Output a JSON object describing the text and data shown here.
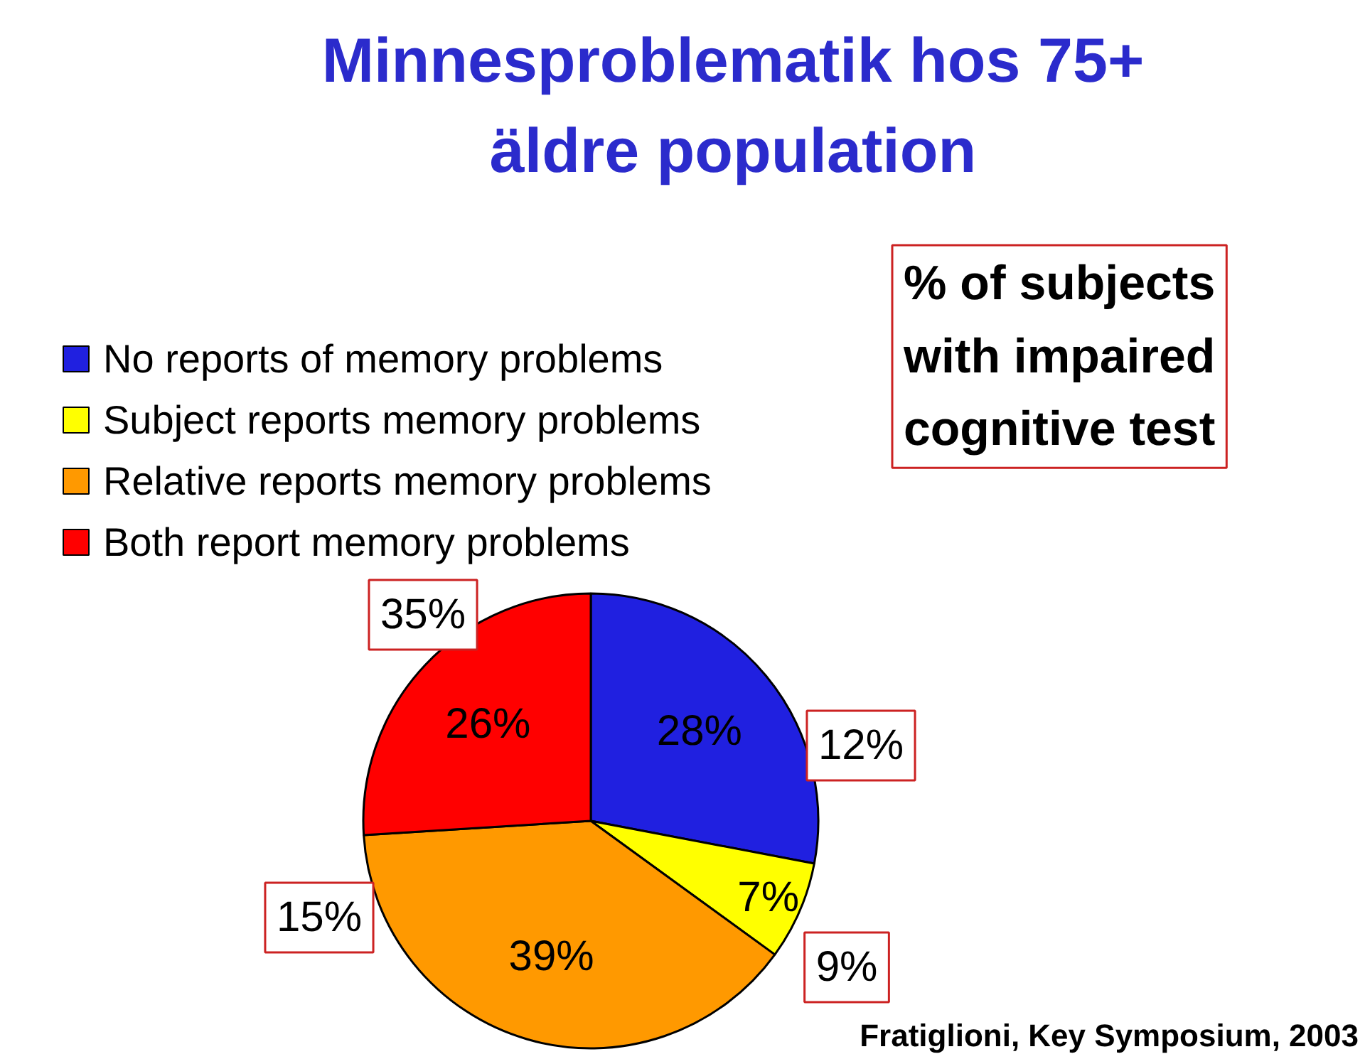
{
  "chart_data": {
    "type": "pie",
    "title": "Minnesproblematik hos 75+\näldre population",
    "categories": [
      "No reports of memory problems",
      "Subject reports memory problems",
      "Relative reports memory problems",
      "Both report memory problems"
    ],
    "values": [
      28,
      7,
      39,
      26
    ],
    "colors": [
      "#2020e0",
      "#ffff00",
      "#ff9900",
      "#ff0000"
    ],
    "value_labels": [
      "28%",
      "7%",
      "39%",
      "26%"
    ],
    "legend": "top left",
    "annotations": [
      "12%",
      "9%",
      "15%",
      "35%",
      "% of subjects\nwith impaired\ncognitive test",
      "Fratiglioni, Key Symposium, 2003"
    ]
  }
}
